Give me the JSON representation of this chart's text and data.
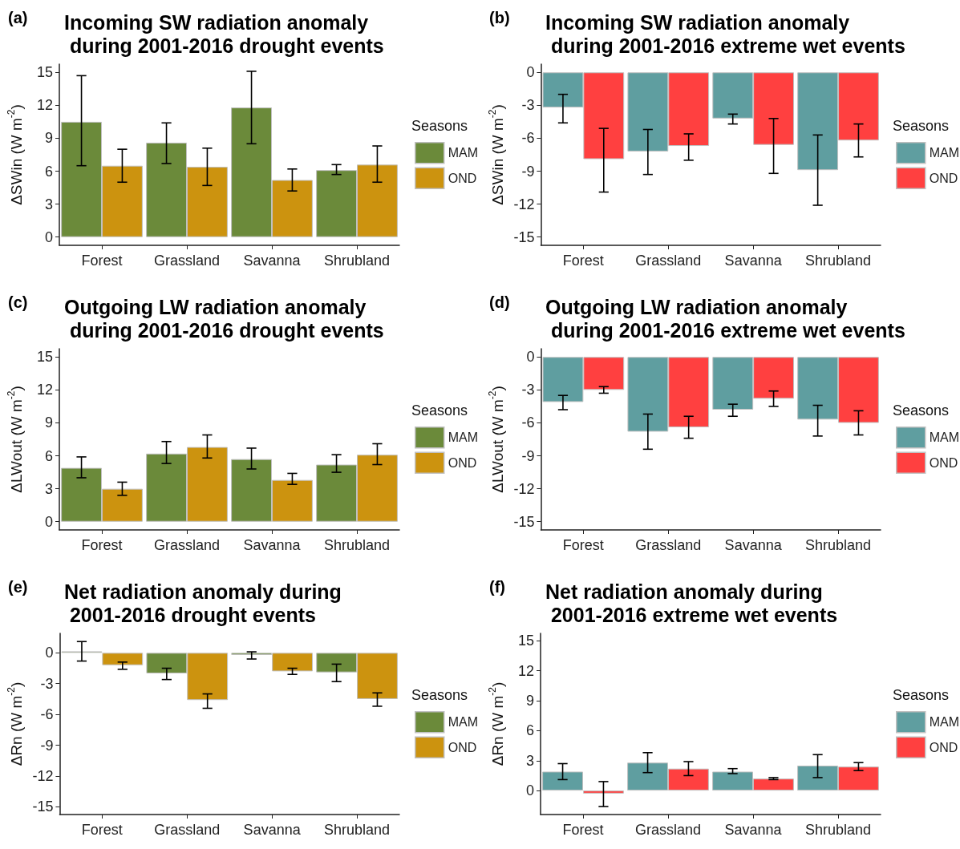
{
  "chart_data": [
    {
      "type": "bar",
      "title": "Incoming SW radiation anomaly\n during 2001-2016 drought events",
      "annotations": [
        "(a)"
      ],
      "ylabel": "ΔSWin (W m$^{-2}$)",
      "legend_title": "Seasons",
      "legend": "right",
      "grid": false,
      "categories": [
        "Forest",
        "Grassland",
        "Savanna",
        "Shrubland"
      ],
      "ylim": [
        -0.75,
        15.75
      ],
      "yticks": [
        0,
        3,
        6,
        9,
        12,
        15
      ],
      "series": [
        {
          "name": "MAM",
          "color": "#6b8a3a",
          "values": [
            10.5,
            8.6,
            11.8,
            6.1
          ],
          "errors": [
            [
              6.5,
              14.7
            ],
            [
              6.7,
              10.4
            ],
            [
              8.5,
              15.1
            ],
            [
              5.7,
              6.6
            ]
          ]
        },
        {
          "name": "OND",
          "color": "#cc930f",
          "values": [
            6.5,
            6.4,
            5.2,
            6.6
          ],
          "errors": [
            [
              5.0,
              8.0
            ],
            [
              4.7,
              8.1
            ],
            [
              4.2,
              6.2
            ],
            [
              5.0,
              8.3
            ]
          ]
        }
      ]
    },
    {
      "type": "bar",
      "title": "Incoming SW radiation anomaly\n during 2001-2016 extreme wet events",
      "annotations": [
        "(b)"
      ],
      "ylabel": "ΔSWin (W m$^{-2}$)",
      "legend_title": "Seasons",
      "legend": "right",
      "grid": false,
      "categories": [
        "Forest",
        "Grassland",
        "Savanna",
        "Shrubland"
      ],
      "ylim": [
        -15.75,
        0.75
      ],
      "yticks": [
        -15,
        -12,
        -9,
        -6,
        -3,
        0
      ],
      "series": [
        {
          "name": "MAM",
          "color": "#5f9ea0",
          "values": [
            -3.2,
            -7.2,
            -4.2,
            -8.9
          ],
          "errors": [
            [
              -4.6,
              -2.0
            ],
            [
              -9.3,
              -5.2
            ],
            [
              -4.7,
              -3.8
            ],
            [
              -12.1,
              -5.7
            ]
          ]
        },
        {
          "name": "OND",
          "color": "#ff4040",
          "values": [
            -7.9,
            -6.7,
            -6.6,
            -6.2
          ],
          "errors": [
            [
              -10.9,
              -5.1
            ],
            [
              -8.0,
              -5.6
            ],
            [
              -9.2,
              -4.2
            ],
            [
              -7.7,
              -4.7
            ]
          ]
        }
      ]
    },
    {
      "type": "bar",
      "title": "Outgoing LW radiation anomaly\n during 2001-2016 drought events",
      "annotations": [
        "(c)"
      ],
      "ylabel": "ΔLWout (W m$^{-2}$)",
      "legend_title": "Seasons",
      "legend": "right",
      "grid": false,
      "categories": [
        "Forest",
        "Grassland",
        "Savanna",
        "Shrubland"
      ],
      "ylim": [
        -0.75,
        15.75
      ],
      "yticks": [
        0,
        3,
        6,
        9,
        12,
        15
      ],
      "series": [
        {
          "name": "MAM",
          "color": "#6b8a3a",
          "values": [
            4.9,
            6.2,
            5.7,
            5.2
          ],
          "errors": [
            [
              4.0,
              5.9
            ],
            [
              5.3,
              7.3
            ],
            [
              4.8,
              6.7
            ],
            [
              4.5,
              6.1
            ]
          ]
        },
        {
          "name": "OND",
          "color": "#cc930f",
          "values": [
            3.0,
            6.8,
            3.8,
            6.1
          ],
          "errors": [
            [
              2.4,
              3.6
            ],
            [
              5.8,
              7.9
            ],
            [
              3.4,
              4.4
            ],
            [
              5.2,
              7.1
            ]
          ]
        }
      ]
    },
    {
      "type": "bar",
      "title": "Outgoing LW radiation anomaly\n during 2001-2016 extreme wet events",
      "annotations": [
        "(d)"
      ],
      "ylabel": "ΔLWout (W m$^{-2}$)",
      "legend_title": "Seasons",
      "legend": "right",
      "grid": false,
      "categories": [
        "Forest",
        "Grassland",
        "Savanna",
        "Shrubland"
      ],
      "ylim": [
        -15.75,
        0.75
      ],
      "yticks": [
        -15,
        -12,
        -9,
        -6,
        -3,
        0
      ],
      "series": [
        {
          "name": "MAM",
          "color": "#5f9ea0",
          "values": [
            -4.1,
            -6.8,
            -4.8,
            -5.7
          ],
          "errors": [
            [
              -4.8,
              -3.5
            ],
            [
              -8.4,
              -5.2
            ],
            [
              -5.4,
              -4.3
            ],
            [
              -7.2,
              -4.4
            ]
          ]
        },
        {
          "name": "OND",
          "color": "#ff4040",
          "values": [
            -3.0,
            -6.4,
            -3.8,
            -6.0
          ],
          "errors": [
            [
              -3.3,
              -2.7
            ],
            [
              -7.4,
              -5.4
            ],
            [
              -4.5,
              -3.1
            ],
            [
              -7.1,
              -4.9
            ]
          ]
        }
      ]
    },
    {
      "type": "bar",
      "title": "Net radiation anomaly during\n 2001-2016 drought events",
      "annotations": [
        "(e)"
      ],
      "ylabel": "ΔRn (W m$^{-2}$)",
      "legend_title": "Seasons",
      "legend": "right",
      "grid": false,
      "categories": [
        "Forest",
        "Grassland",
        "Savanna",
        "Shrubland"
      ],
      "ylim": [
        -15.75,
        1.9
      ],
      "yticks": [
        -15,
        -12,
        -9,
        -6,
        -3,
        0
      ],
      "series": [
        {
          "name": "MAM",
          "color": "#6b8a3a",
          "values": [
            0.15,
            -2.0,
            -0.2,
            -1.9
          ],
          "errors": [
            [
              -0.8,
              1.1
            ],
            [
              -2.6,
              -1.5
            ],
            [
              -0.6,
              0.1
            ],
            [
              -2.8,
              -1.1
            ]
          ]
        },
        {
          "name": "OND",
          "color": "#cc930f",
          "values": [
            -1.2,
            -4.6,
            -1.8,
            -4.5
          ],
          "errors": [
            [
              -1.6,
              -0.9
            ],
            [
              -5.4,
              -4.0
            ],
            [
              -2.1,
              -1.5
            ],
            [
              -5.2,
              -3.9
            ]
          ]
        }
      ]
    },
    {
      "type": "bar",
      "title": "Net radiation anomaly during\n 2001-2016 extreme wet events",
      "annotations": [
        "(f)"
      ],
      "ylabel": "ΔRn (W m$^{-2}$)",
      "legend_title": "Seasons",
      "legend": "right",
      "grid": false,
      "categories": [
        "Forest",
        "Grassland",
        "Savanna",
        "Shrubland"
      ],
      "ylim": [
        -2.4,
        15.75
      ],
      "yticks": [
        0,
        3,
        6,
        9,
        12,
        15
      ],
      "series": [
        {
          "name": "MAM",
          "color": "#5f9ea0",
          "values": [
            1.9,
            2.8,
            1.9,
            2.5
          ],
          "errors": [
            [
              1.1,
              2.7
            ],
            [
              1.8,
              3.8
            ],
            [
              1.7,
              2.2
            ],
            [
              1.3,
              3.6
            ]
          ]
        },
        {
          "name": "OND",
          "color": "#ff4040",
          "values": [
            -0.3,
            2.2,
            1.2,
            2.4
          ],
          "errors": [
            [
              -1.6,
              0.9
            ],
            [
              1.5,
              2.9
            ],
            [
              1.1,
              1.3
            ],
            [
              2.0,
              2.8
            ]
          ]
        }
      ]
    }
  ]
}
